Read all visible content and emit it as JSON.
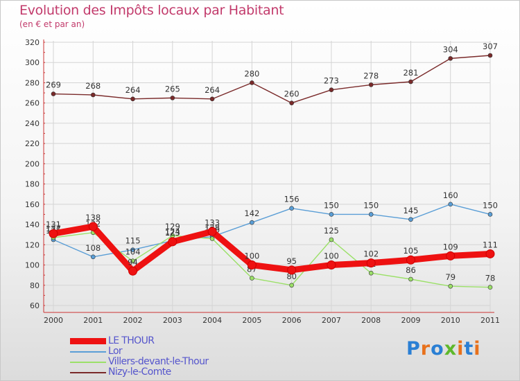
{
  "title": "Evolution des Impôts locaux par Habitant",
  "subtitle": "(en € et par an)",
  "brand": {
    "text": "Proxiti",
    "letter_colors": [
      "#2a7fd4",
      "#e8711c",
      "#2a7fd4",
      "#5eb82b",
      "#e8711c",
      "#2a7fd4",
      "#e8711c"
    ]
  },
  "chart_data": {
    "type": "line",
    "x": [
      "2000",
      "2001",
      "2002",
      "2003",
      "2004",
      "2005",
      "2006",
      "2007",
      "2008",
      "2009",
      "2010",
      "2011"
    ],
    "ylim": [
      60,
      320
    ],
    "yticks": [
      60,
      80,
      100,
      120,
      140,
      160,
      180,
      200,
      220,
      240,
      260,
      280,
      300,
      320
    ],
    "grid": true,
    "legend_position": "bottom-left",
    "series": [
      {
        "name": "Nizy-le-Comte",
        "color": "#7a2a2a",
        "values": [
          269,
          268,
          264,
          265,
          264,
          280,
          260,
          273,
          278,
          281,
          304,
          307
        ],
        "labels": [
          "269",
          "268",
          "264",
          "265",
          "264",
          "280",
          "260",
          "273",
          "278",
          "281",
          "304",
          "307"
        ]
      },
      {
        "name": "Lor",
        "color": "#5a9ed6",
        "values": [
          125,
          108,
          115,
          124,
          128,
          142,
          156,
          150,
          150,
          145,
          160,
          150
        ],
        "labels": [
          "125",
          "108",
          "115",
          "124",
          "128",
          "142",
          "156",
          "150",
          "150",
          "145",
          "160",
          "150"
        ]
      },
      {
        "name": "Villers-devant-le-Thour",
        "color": "#9be068",
        "values": [
          127,
          132,
          104,
          129,
          126,
          87,
          80,
          125,
          92,
          86,
          79,
          78
        ],
        "labels": [
          "127",
          "132",
          "104",
          "129",
          "126",
          "87",
          "80",
          "125",
          "92",
          "86",
          "79",
          "78"
        ]
      },
      {
        "name": "LE THOUR",
        "color": "#ee1111",
        "values": [
          131,
          138,
          94,
          123,
          133,
          100,
          95,
          100,
          102,
          105,
          109,
          111
        ],
        "labels": [
          "131",
          "138",
          "94",
          "123",
          "133",
          "100",
          "95",
          "100",
          "102",
          "105",
          "109",
          "111"
        ]
      }
    ],
    "legend": [
      "LE THOUR",
      "Lor",
      "Villers-devant-le-Thour",
      "Nizy-le-Comte"
    ]
  }
}
